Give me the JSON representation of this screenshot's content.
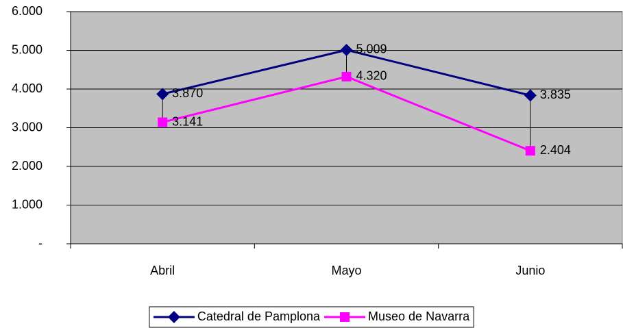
{
  "chart_data": {
    "type": "line",
    "categories": [
      "Abril",
      "Mayo",
      "Junio"
    ],
    "series": [
      {
        "name": "Catedral de Pamplona",
        "color": "#000080",
        "marker": "diamond",
        "values": [
          3870,
          5009,
          3835
        ],
        "value_labels": [
          "3.870",
          "5.009",
          "3.835"
        ]
      },
      {
        "name": "Museo de Navarra",
        "color": "#ff00ff",
        "marker": "square",
        "values": [
          3141,
          4320,
          2404
        ],
        "value_labels": [
          "3.141",
          "4.320",
          "2.404"
        ]
      }
    ],
    "ylim": [
      0,
      6000
    ],
    "yticks": [
      {
        "value": 0,
        "label": "-"
      },
      {
        "value": 1000,
        "label": "1.000"
      },
      {
        "value": 2000,
        "label": "2.000"
      },
      {
        "value": 3000,
        "label": "3.000"
      },
      {
        "value": 4000,
        "label": "4.000"
      },
      {
        "value": 5000,
        "label": "5.000"
      },
      {
        "value": 6000,
        "label": "6.000"
      }
    ],
    "grid": true,
    "plot_background": "#c0c0c0",
    "high_low_lines": true,
    "legend": "bottom"
  }
}
